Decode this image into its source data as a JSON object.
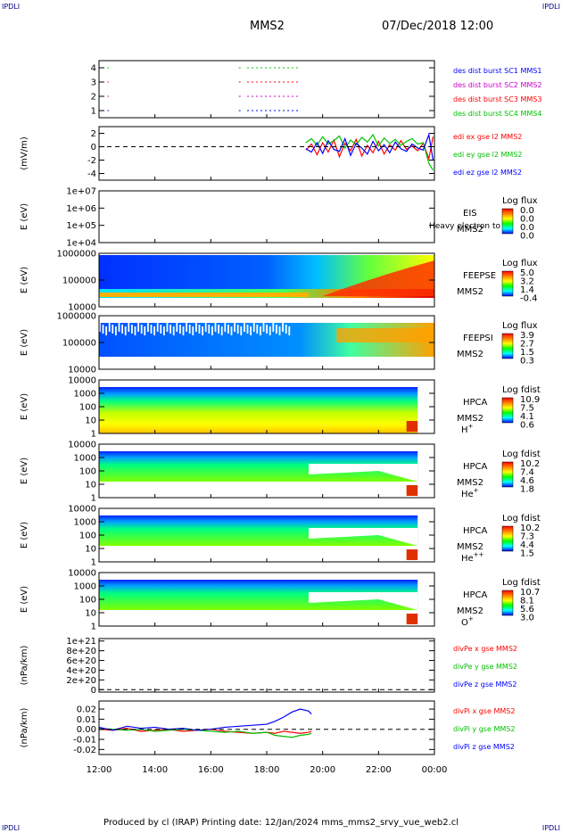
{
  "header": {
    "corner_left": "IPDLI",
    "corner_right": "IPDLI",
    "corner_bl": "IPDLI",
    "corner_br": "IPDLI",
    "spacecraft": "MMS2",
    "date": "07/Dec/2018 12:00"
  },
  "footer": {
    "text": "Produced by cl (IRAP)   Printing date: 12/Jan/2024   mms_mms2_srvy_vue_web2.cl"
  },
  "colors": {
    "red": "#ff0000",
    "green": "#00c000",
    "blue": "#0000ff",
    "magenta": "#cc00cc",
    "black": "#000000"
  },
  "chart_data": [
    {
      "id": "burst",
      "type": "scatter",
      "ylabel": "",
      "ylim": [
        0.5,
        4.5
      ],
      "yticks": [
        "1",
        "2",
        "3",
        "4"
      ],
      "legend": [
        {
          "text": "des dist burst SC1 MMS1",
          "color": "#0000ff"
        },
        {
          "text": "des dist burst SC2 MMS2",
          "color": "#cc00cc"
        },
        {
          "text": "des dist burst SC3 MMS3",
          "color": "#ff0000"
        },
        {
          "text": "des dist burst SC4 MMS4",
          "color": "#00c000"
        }
      ],
      "series": [
        {
          "y": 4,
          "color": "#00c000",
          "segments": [
            [
              12.3,
              12.35
            ],
            [
              17.0,
              17.1
            ],
            [
              17.3,
              19.2
            ]
          ]
        },
        {
          "y": 3,
          "color": "#ff0000",
          "segments": [
            [
              12.3,
              12.35
            ],
            [
              17.0,
              17.1
            ],
            [
              17.3,
              19.2
            ]
          ]
        },
        {
          "y": 2,
          "color": "#cc00cc",
          "segments": [
            [
              12.3,
              12.35
            ],
            [
              17.0,
              17.1
            ],
            [
              17.3,
              19.2
            ]
          ]
        },
        {
          "y": 1,
          "color": "#0000ff",
          "segments": [
            [
              12.3,
              12.35
            ],
            [
              17.0,
              17.1
            ],
            [
              17.3,
              19.2
            ]
          ]
        }
      ]
    },
    {
      "id": "edi",
      "type": "line",
      "ylabel": "(mV/m)",
      "ylim": [
        -5,
        3
      ],
      "yticks": [
        "-4",
        "-2",
        "0",
        "2"
      ],
      "legend": [
        {
          "text": "edi ex gse l2 MMS2",
          "color": "#ff0000"
        },
        {
          "text": "edi ey gse l2 MMS2",
          "color": "#00c000"
        },
        {
          "text": "edi ez gse l2 MMS2",
          "color": "#0000ff"
        }
      ],
      "x": [
        19.4,
        19.6,
        19.8,
        20.0,
        20.2,
        20.4,
        20.6,
        20.8,
        21.0,
        21.2,
        21.4,
        21.6,
        21.8,
        22.0,
        22.2,
        22.4,
        22.6,
        22.8,
        23.0,
        23.2,
        23.4,
        23.6,
        23.8,
        23.95
      ],
      "series": [
        {
          "name": "edi ex gse l2 MMS2",
          "color": "#ff0000",
          "values": [
            -0.5,
            0.4,
            -1.2,
            0.6,
            -0.8,
            1.0,
            -1.5,
            0.5,
            -0.6,
            1.1,
            -1.4,
            0.2,
            -0.9,
            0.8,
            -1.1,
            0.3,
            -0.5,
            0.9,
            -0.4,
            0.1,
            -0.6,
            0.5,
            -1.8,
            1.5
          ]
        },
        {
          "name": "edi ey gse l2 MMS2",
          "color": "#00c000",
          "values": [
            0.6,
            1.2,
            0.2,
            1.5,
            0.4,
            0.9,
            1.6,
            -0.2,
            1.0,
            0.3,
            1.4,
            0.7,
            1.8,
            0.1,
            1.3,
            0.5,
            1.1,
            0.2,
            0.8,
            1.2,
            0.4,
            0.6,
            -2.5,
            -3.5
          ]
        },
        {
          "name": "edi ez gse l2 MMS2",
          "color": "#0000ff",
          "values": [
            -0.3,
            -0.8,
            0.6,
            -1.0,
            0.9,
            -0.4,
            -0.7,
            1.2,
            -1.3,
            0.5,
            -0.2,
            -1.1,
            0.8,
            -0.6,
            0.3,
            -0.9,
            0.7,
            -0.3,
            -0.7,
            0.4,
            -0.2,
            -0.5,
            1.8,
            -2.0
          ]
        }
      ]
    },
    {
      "id": "eis",
      "type": "heatmap",
      "ylabel": "E (eV)",
      "yscale": "log",
      "ylim": [
        10000,
        10000000
      ],
      "yticks": [
        "1e+04",
        "1e+05",
        "1e+06",
        "1e+07"
      ],
      "labels": [
        "EIS",
        "MMS2"
      ],
      "overlay_text": "Heavy electron to",
      "colorbar": {
        "title": "Log flux",
        "ticks": [
          "0.0",
          "0.0",
          "0.0",
          "0.0"
        ]
      }
    },
    {
      "id": "feepse",
      "type": "heatmap",
      "ylabel": "E (eV)",
      "yscale": "log",
      "ylim": [
        10000,
        1000000
      ],
      "yticks": [
        "10000",
        "100000",
        "1000000"
      ],
      "labels": [
        "FEEPSE",
        "MMS2"
      ],
      "colorbar": {
        "title": "Log flux",
        "ticks": [
          "5.0",
          "3.2",
          "1.4",
          "-0.4"
        ]
      }
    },
    {
      "id": "feepsi",
      "type": "heatmap",
      "ylabel": "E (eV)",
      "yscale": "log",
      "ylim": [
        10000,
        1000000
      ],
      "yticks": [
        "10000",
        "100000",
        "1000000"
      ],
      "labels": [
        "FEEPSI",
        "MMS2"
      ],
      "colorbar": {
        "title": "Log flux",
        "ticks": [
          "3.9",
          "2.7",
          "1.5",
          "0.3"
        ]
      }
    },
    {
      "id": "hpca_h",
      "type": "heatmap",
      "ylabel": "E (eV)",
      "yscale": "log",
      "ylim": [
        1,
        10000
      ],
      "yticks": [
        "1",
        "10",
        "100",
        "1000",
        "10000"
      ],
      "labels": [
        "HPCA",
        "MMS2"
      ],
      "species": {
        "base": "H",
        "sup": "+"
      },
      "colorbar": {
        "title": "Log fdist",
        "ticks": [
          "10.9",
          "7.5",
          "4.1",
          "0.6"
        ]
      }
    },
    {
      "id": "hpca_he",
      "type": "heatmap",
      "ylabel": "E (eV)",
      "yscale": "log",
      "ylim": [
        1,
        10000
      ],
      "yticks": [
        "1",
        "10",
        "100",
        "1000",
        "10000"
      ],
      "labels": [
        "HPCA",
        "MMS2"
      ],
      "species": {
        "base": "He",
        "sup": "+"
      },
      "colorbar": {
        "title": "Log fdist",
        "ticks": [
          "10.2",
          "7.4",
          "4.6",
          "1.8"
        ]
      }
    },
    {
      "id": "hpca_hepp",
      "type": "heatmap",
      "ylabel": "E (eV)",
      "yscale": "log",
      "ylim": [
        1,
        10000
      ],
      "yticks": [
        "1",
        "10",
        "100",
        "1000",
        "10000"
      ],
      "labels": [
        "HPCA",
        "MMS2"
      ],
      "species": {
        "base": "He",
        "sup": "++"
      },
      "colorbar": {
        "title": "Log fdist",
        "ticks": [
          "10.2",
          "7.3",
          "4.4",
          "1.5"
        ]
      }
    },
    {
      "id": "hpca_o",
      "type": "heatmap",
      "ylabel": "E (eV)",
      "yscale": "log",
      "ylim": [
        1,
        10000
      ],
      "yticks": [
        "1",
        "10",
        "100",
        "1000",
        "10000"
      ],
      "labels": [
        "HPCA",
        "MMS2"
      ],
      "species": {
        "base": "O",
        "sup": "+"
      },
      "colorbar": {
        "title": "Log fdist",
        "ticks": [
          "10.7",
          "8.1",
          "5.6",
          "3.0"
        ]
      }
    },
    {
      "id": "divpe",
      "type": "line",
      "ylabel": "(nPa/km)",
      "ylim": [
        -5e+19,
        1.05e+21
      ],
      "yticks": [
        "0",
        "2e+20",
        "4e+20",
        "6e+20",
        "8e+20",
        "1e+21"
      ],
      "legend": [
        {
          "text": "divPe x gse MMS2",
          "color": "#ff0000"
        },
        {
          "text": "divPe y gse MMS2",
          "color": "#00c000"
        },
        {
          "text": "divPe z gse MMS2",
          "color": "#0000ff"
        }
      ]
    },
    {
      "id": "divpi",
      "type": "line",
      "ylabel": "(nPa/km)",
      "ylim": [
        -0.025,
        0.028
      ],
      "yticks": [
        "-0.02",
        "-0.01",
        "0.00",
        "0.01",
        "0.02"
      ],
      "legend": [
        {
          "text": "divPi x gse MMS2",
          "color": "#ff0000"
        },
        {
          "text": "divPi y gse MMS2",
          "color": "#00c000"
        },
        {
          "text": "divPi z gse MMS2",
          "color": "#0000ff"
        }
      ],
      "x": [
        12.0,
        12.5,
        13.0,
        13.5,
        14.0,
        14.5,
        15.0,
        15.5,
        16.0,
        16.5,
        17.0,
        17.5,
        18.0,
        18.3,
        18.6,
        18.9,
        19.2,
        19.5,
        19.6
      ],
      "series": [
        {
          "name": "divPi x gse MMS2",
          "color": "#ff0000",
          "values": [
            0.0,
            -0.001,
            0.001,
            -0.002,
            -0.001,
            0.0,
            -0.002,
            -0.001,
            0.0,
            -0.002,
            -0.003,
            -0.004,
            -0.003,
            -0.004,
            -0.002,
            -0.003,
            -0.004,
            -0.003,
            -0.002
          ]
        },
        {
          "name": "divPi y gse MMS2",
          "color": "#00c000",
          "values": [
            0.001,
            0.0,
            -0.001,
            0.0,
            -0.002,
            -0.001,
            0.0,
            -0.001,
            -0.002,
            -0.003,
            -0.002,
            -0.004,
            -0.003,
            -0.006,
            -0.007,
            -0.008,
            -0.006,
            -0.005,
            -0.004
          ]
        },
        {
          "name": "divPi z gse MMS2",
          "color": "#0000ff",
          "values": [
            0.002,
            -0.001,
            0.003,
            0.001,
            0.002,
            0.0,
            0.001,
            -0.001,
            0.0,
            0.002,
            0.003,
            0.004,
            0.005,
            0.008,
            0.012,
            0.017,
            0.02,
            0.018,
            0.015
          ]
        }
      ]
    }
  ],
  "xaxis": {
    "xlim": [
      12,
      24
    ],
    "ticks": [
      {
        "x": 12,
        "label": "12:00"
      },
      {
        "x": 14,
        "label": "14:00"
      },
      {
        "x": 16,
        "label": "16:00"
      },
      {
        "x": 18,
        "label": "18:00"
      },
      {
        "x": 20,
        "label": "20:00"
      },
      {
        "x": 22,
        "label": "22:00"
      },
      {
        "x": 24,
        "label": "00:00"
      }
    ]
  }
}
